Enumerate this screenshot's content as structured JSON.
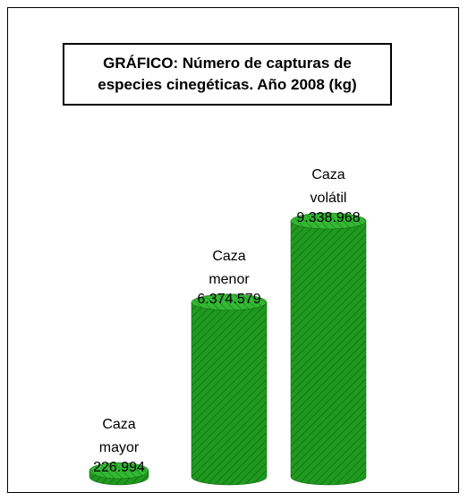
{
  "chart_data": {
    "type": "bar",
    "title": "GRÁFICO: Número de capturas de especies cinegéticas. Año 2008 (kg)",
    "categories": [
      "Caza mayor",
      "Caza menor",
      "Caza volátil"
    ],
    "values": [
      226994,
      6374579,
      9338968
    ],
    "value_labels": [
      "226.994",
      "6.374.579",
      "9.338.968"
    ],
    "color": "#22a022"
  }
}
